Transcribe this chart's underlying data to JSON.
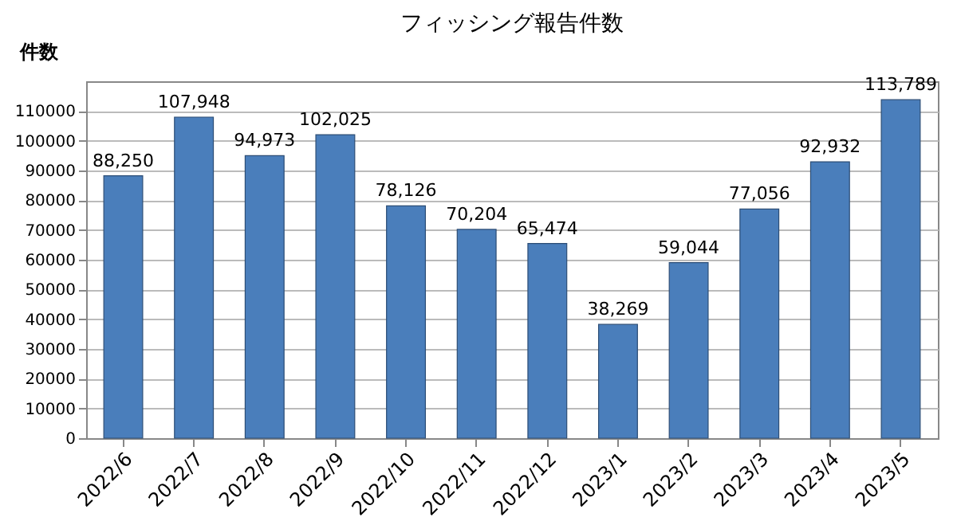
{
  "chart_data": {
    "type": "bar",
    "title": "フィッシング報告件数",
    "ylabel": "件数",
    "categories": [
      "2022/6",
      "2022/7",
      "2022/8",
      "2022/9",
      "2022/10",
      "2022/11",
      "2022/12",
      "2023/1",
      "2023/2",
      "2023/3",
      "2023/4",
      "2023/5"
    ],
    "values": [
      88250,
      107948,
      94973,
      102025,
      78126,
      70204,
      65474,
      38269,
      59044,
      77056,
      92932,
      113789
    ],
    "value_labels": [
      "88,250",
      "107,948",
      "94,973",
      "102,025",
      "78,126",
      "70,204",
      "65,474",
      "38,269",
      "59,044",
      "77,056",
      "92,932",
      "113,789"
    ],
    "color": "#4a7ebb",
    "ylim": [
      0,
      120000
    ],
    "yticks": [
      0,
      10000,
      20000,
      30000,
      40000,
      50000,
      60000,
      70000,
      80000,
      90000,
      100000,
      110000
    ],
    "grid": "y"
  }
}
